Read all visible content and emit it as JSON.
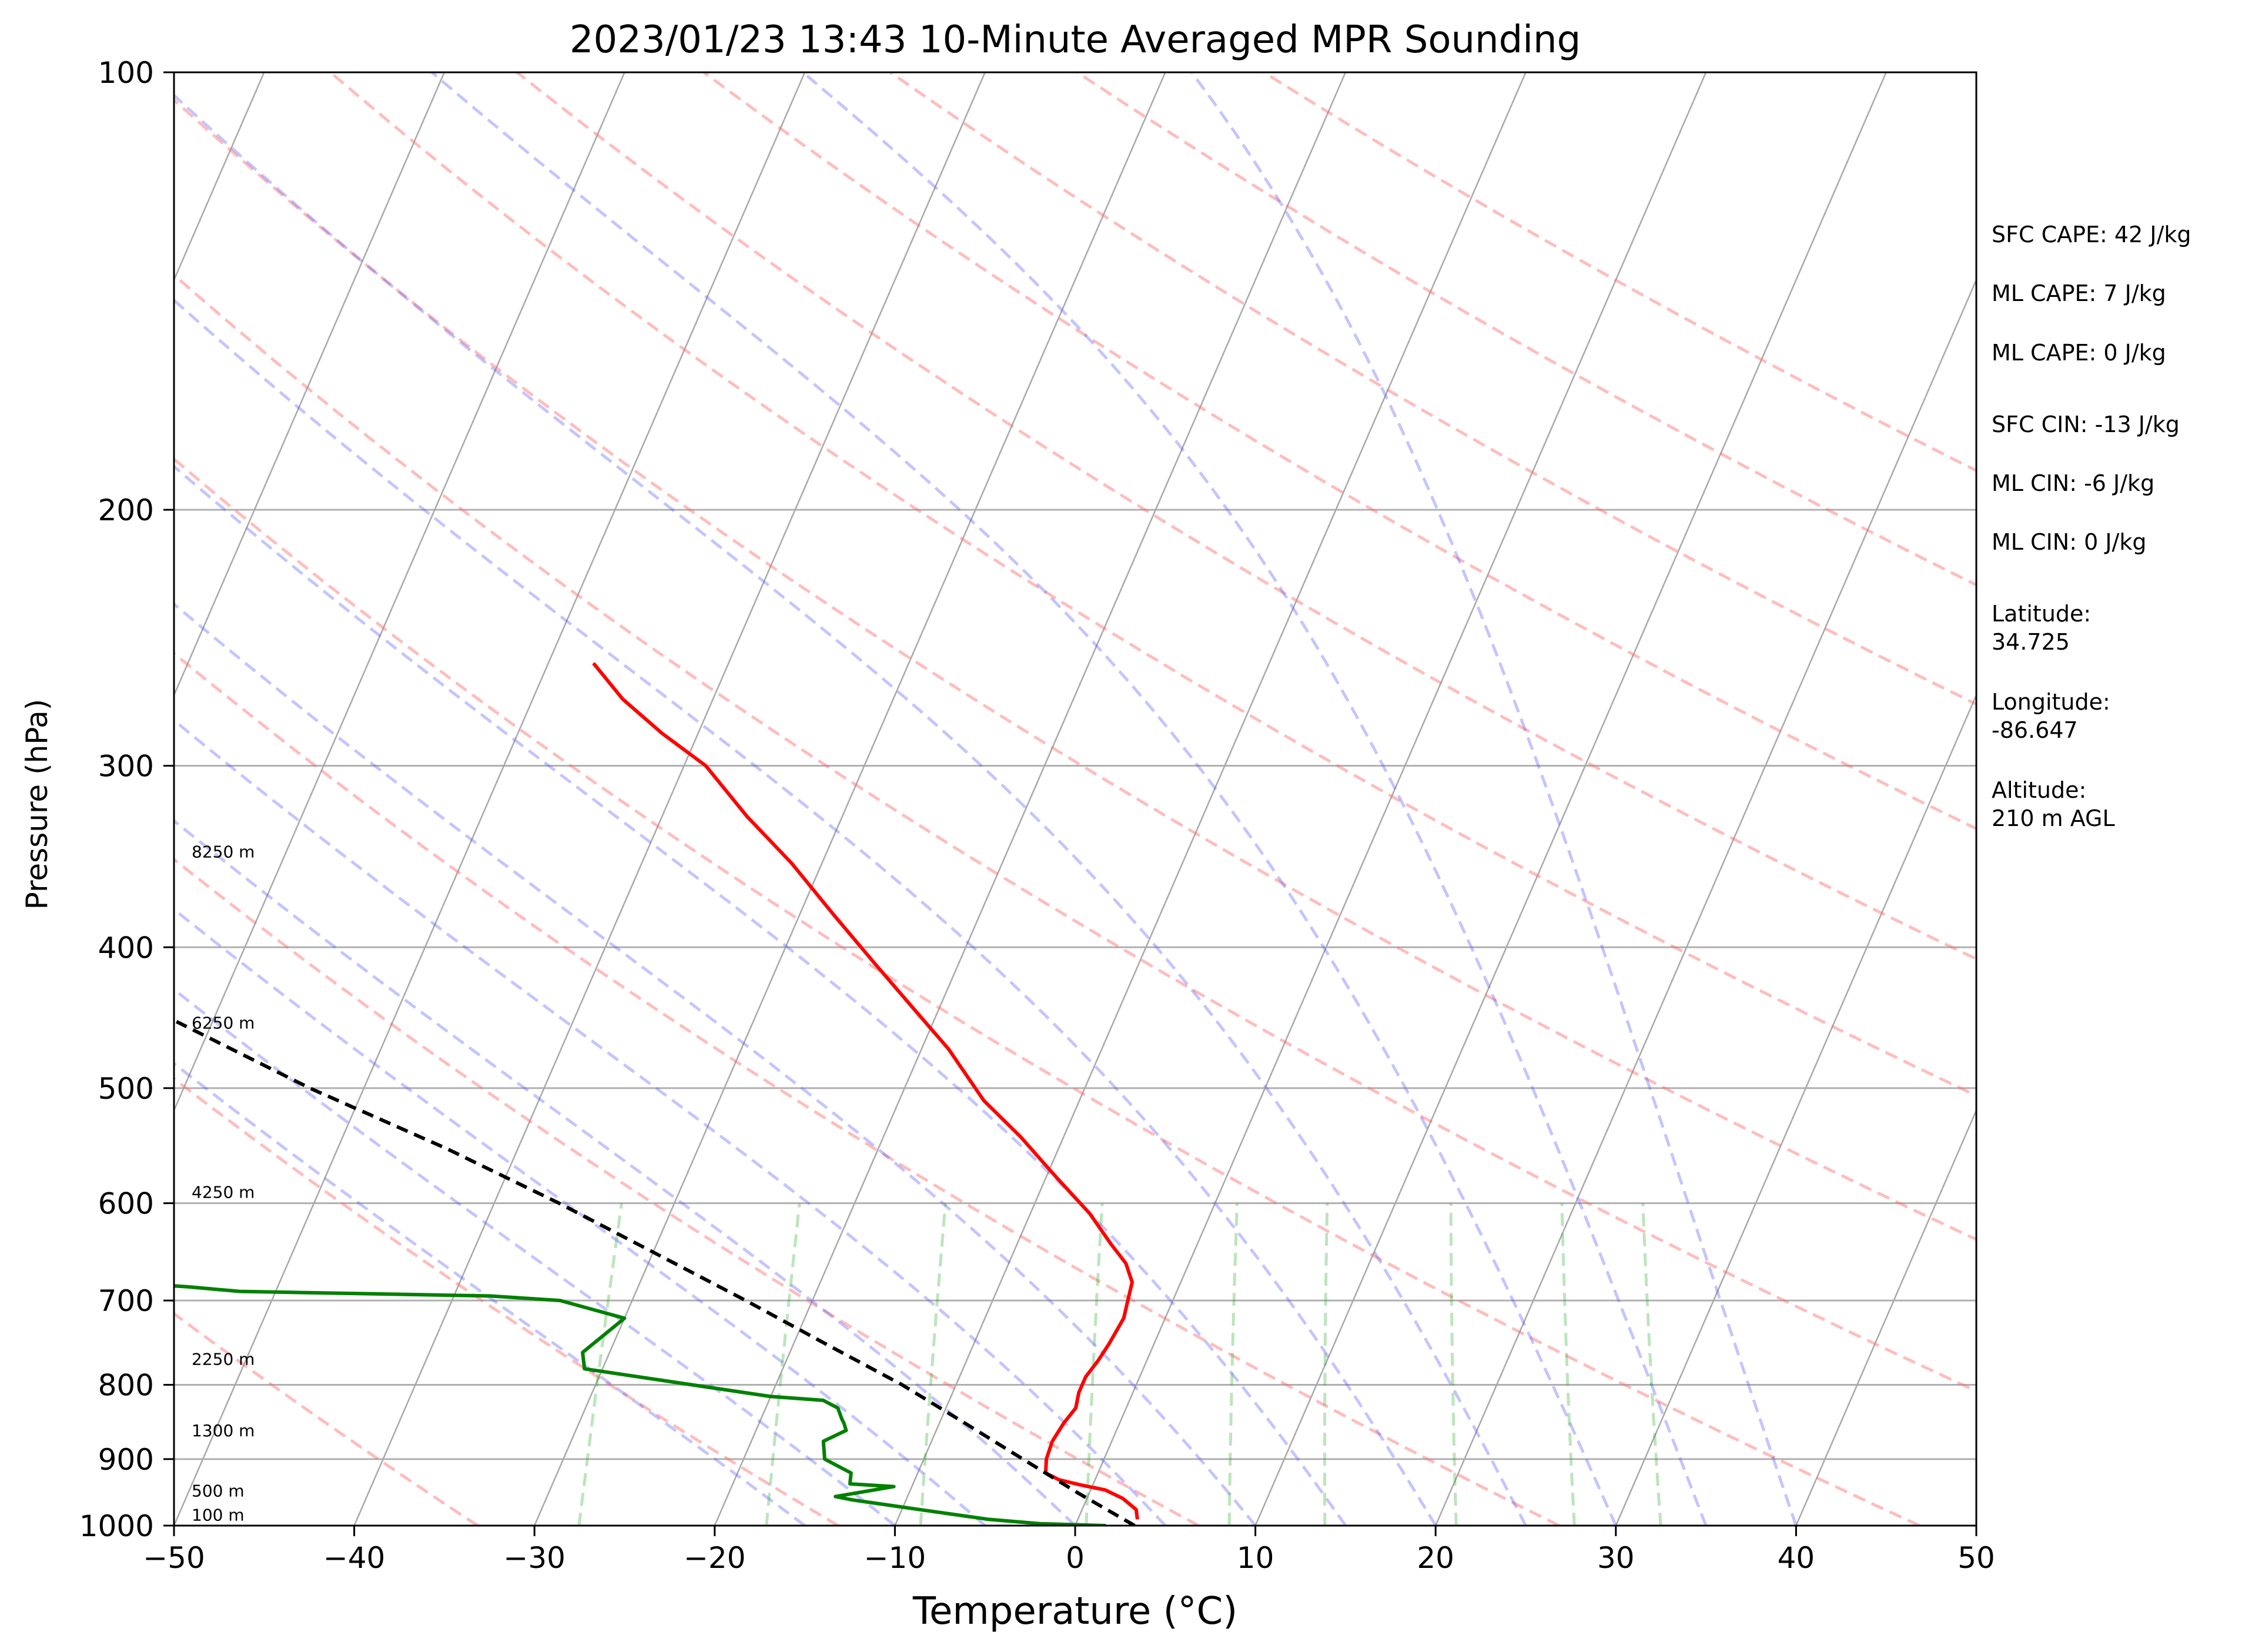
{
  "chart_data": {
    "type": "line",
    "title": "2023/01/23 13:43 10-Minute Averaged MPR Sounding",
    "xlabel": "Temperature (°C)",
    "ylabel": "Pressure (hPa)",
    "xlim": [
      -50,
      50
    ],
    "ylim": [
      1000,
      100
    ],
    "y_scale": "log",
    "skew_t": true,
    "x_ticks": [
      "−50",
      "−40",
      "−30",
      "−20",
      "−10",
      "0",
      "10",
      "20",
      "30",
      "40",
      "50"
    ],
    "y_ticks": [
      "100",
      "200",
      "300",
      "400",
      "500",
      "600",
      "700",
      "800",
      "900",
      "1000"
    ],
    "grid": true,
    "series": [
      {
        "color": "#ff0000",
        "x": [
          3.3,
          3.0,
          2.0,
          0.8,
          -0.6,
          -2.0,
          -2.9,
          -3.2,
          -3.3,
          -3.1,
          -2.8,
          -3.0,
          -3.0,
          -2.7,
          -2.5,
          -2.3,
          -2.5,
          -2.7,
          -3.5,
          -4.8,
          -6.7,
          -9.5,
          -12.4,
          -15.3,
          -18.5,
          -21.5,
          -24.7,
          -28.1,
          -31.7,
          -35.3,
          -38.8,
          -42.0,
          -45.0,
          -47.5
        ],
        "y": [
          990,
          975,
          958,
          945,
          938,
          930,
          920,
          900,
          875,
          850,
          830,
          810,
          790,
          770,
          750,
          720,
          700,
          680,
          660,
          640,
          610,
          575,
          540,
          510,
          470,
          440,
          410,
          380,
          350,
          325,
          300,
          285,
          270,
          255
        ]
      },
      {
        "color": "#008000",
        "x": [
          1.7,
          -2.0,
          -5.0,
          -9.0,
          -13.0,
          -14.0,
          -11.0,
          -13.5,
          -13.7,
          -15.5,
          -16.0,
          -15.0,
          -15.3,
          -15.5,
          -16.0,
          -17.0,
          -20.0,
          -31.0,
          -31.5,
          -30.0,
          -34.0,
          -38.0,
          -52.0,
          -55.0,
          -59.0,
          -63.0,
          -80.0,
          -120.0
        ],
        "y": [
          1000,
          997,
          990,
          975,
          960,
          955,
          940,
          936,
          920,
          900,
          875,
          860,
          850,
          845,
          830,
          820,
          815,
          780,
          760,
          720,
          700,
          695,
          690,
          685,
          680,
          675,
          670,
          660
        ]
      },
      {
        "color": "#000000",
        "style": "dashed",
        "x": [
          3.3,
          -0.6,
          -4.5,
          -8.6,
          -13.0,
          -18.2,
          -23.7,
          -29.8,
          -36.4,
          -44.0,
          -53.0,
          -62.0
        ],
        "y": [
          1000,
          950,
          900,
          850,
          800,
          750,
          700,
          650,
          600,
          550,
          500,
          450
        ]
      }
    ],
    "wind_profile_color": "#008000",
    "height_labels": [
      {
        "text": "100 m",
        "p": 992
      },
      {
        "text": "500 m",
        "p": 955
      },
      {
        "text": "1300 m",
        "p": 868
      },
      {
        "text": "2250 m",
        "p": 775
      },
      {
        "text": "4250 m",
        "p": 595
      },
      {
        "text": "6250 m",
        "p": 455
      },
      {
        "text": "8250 m",
        "p": 347
      }
    ]
  },
  "stats": {
    "sfc_cape": "SFC CAPE: 42 J/kg",
    "ml_cape": "ML CAPE: 7 J/kg",
    "mu_cape": "ML CAPE: 0 J/kg",
    "sfc_cin": "SFC CIN: -13 J/kg",
    "ml_cin": "ML CIN: -6 J/kg",
    "mu_cin": "ML CIN: 0 J/kg",
    "latitude": "Latitude:\n34.725",
    "longitude": "Longitude:\n-86.647",
    "altitude": "Altitude:\n210 m AGL"
  }
}
